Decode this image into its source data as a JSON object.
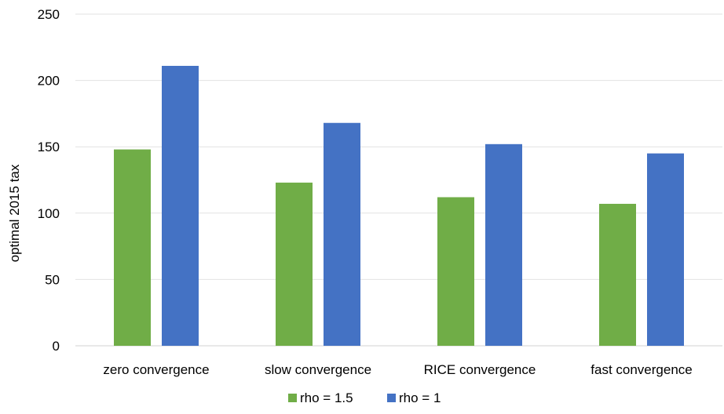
{
  "chart_data": {
    "type": "bar",
    "title": "",
    "xlabel": "",
    "ylabel": "optimal 2015 tax",
    "categories": [
      "zero convergence",
      "slow convergence",
      "RICE convergence",
      "fast convergence"
    ],
    "series": [
      {
        "name": "rho = 1.5",
        "values": [
          148,
          123,
          112,
          107
        ],
        "color": "#70AD47"
      },
      {
        "name": "rho = 1",
        "values": [
          211,
          168,
          152,
          145
        ],
        "color": "#4472C4"
      }
    ],
    "ylim": [
      0,
      250
    ],
    "yticks": [
      0,
      50,
      100,
      150,
      200,
      250
    ],
    "grid": true,
    "legend": "bottom"
  }
}
